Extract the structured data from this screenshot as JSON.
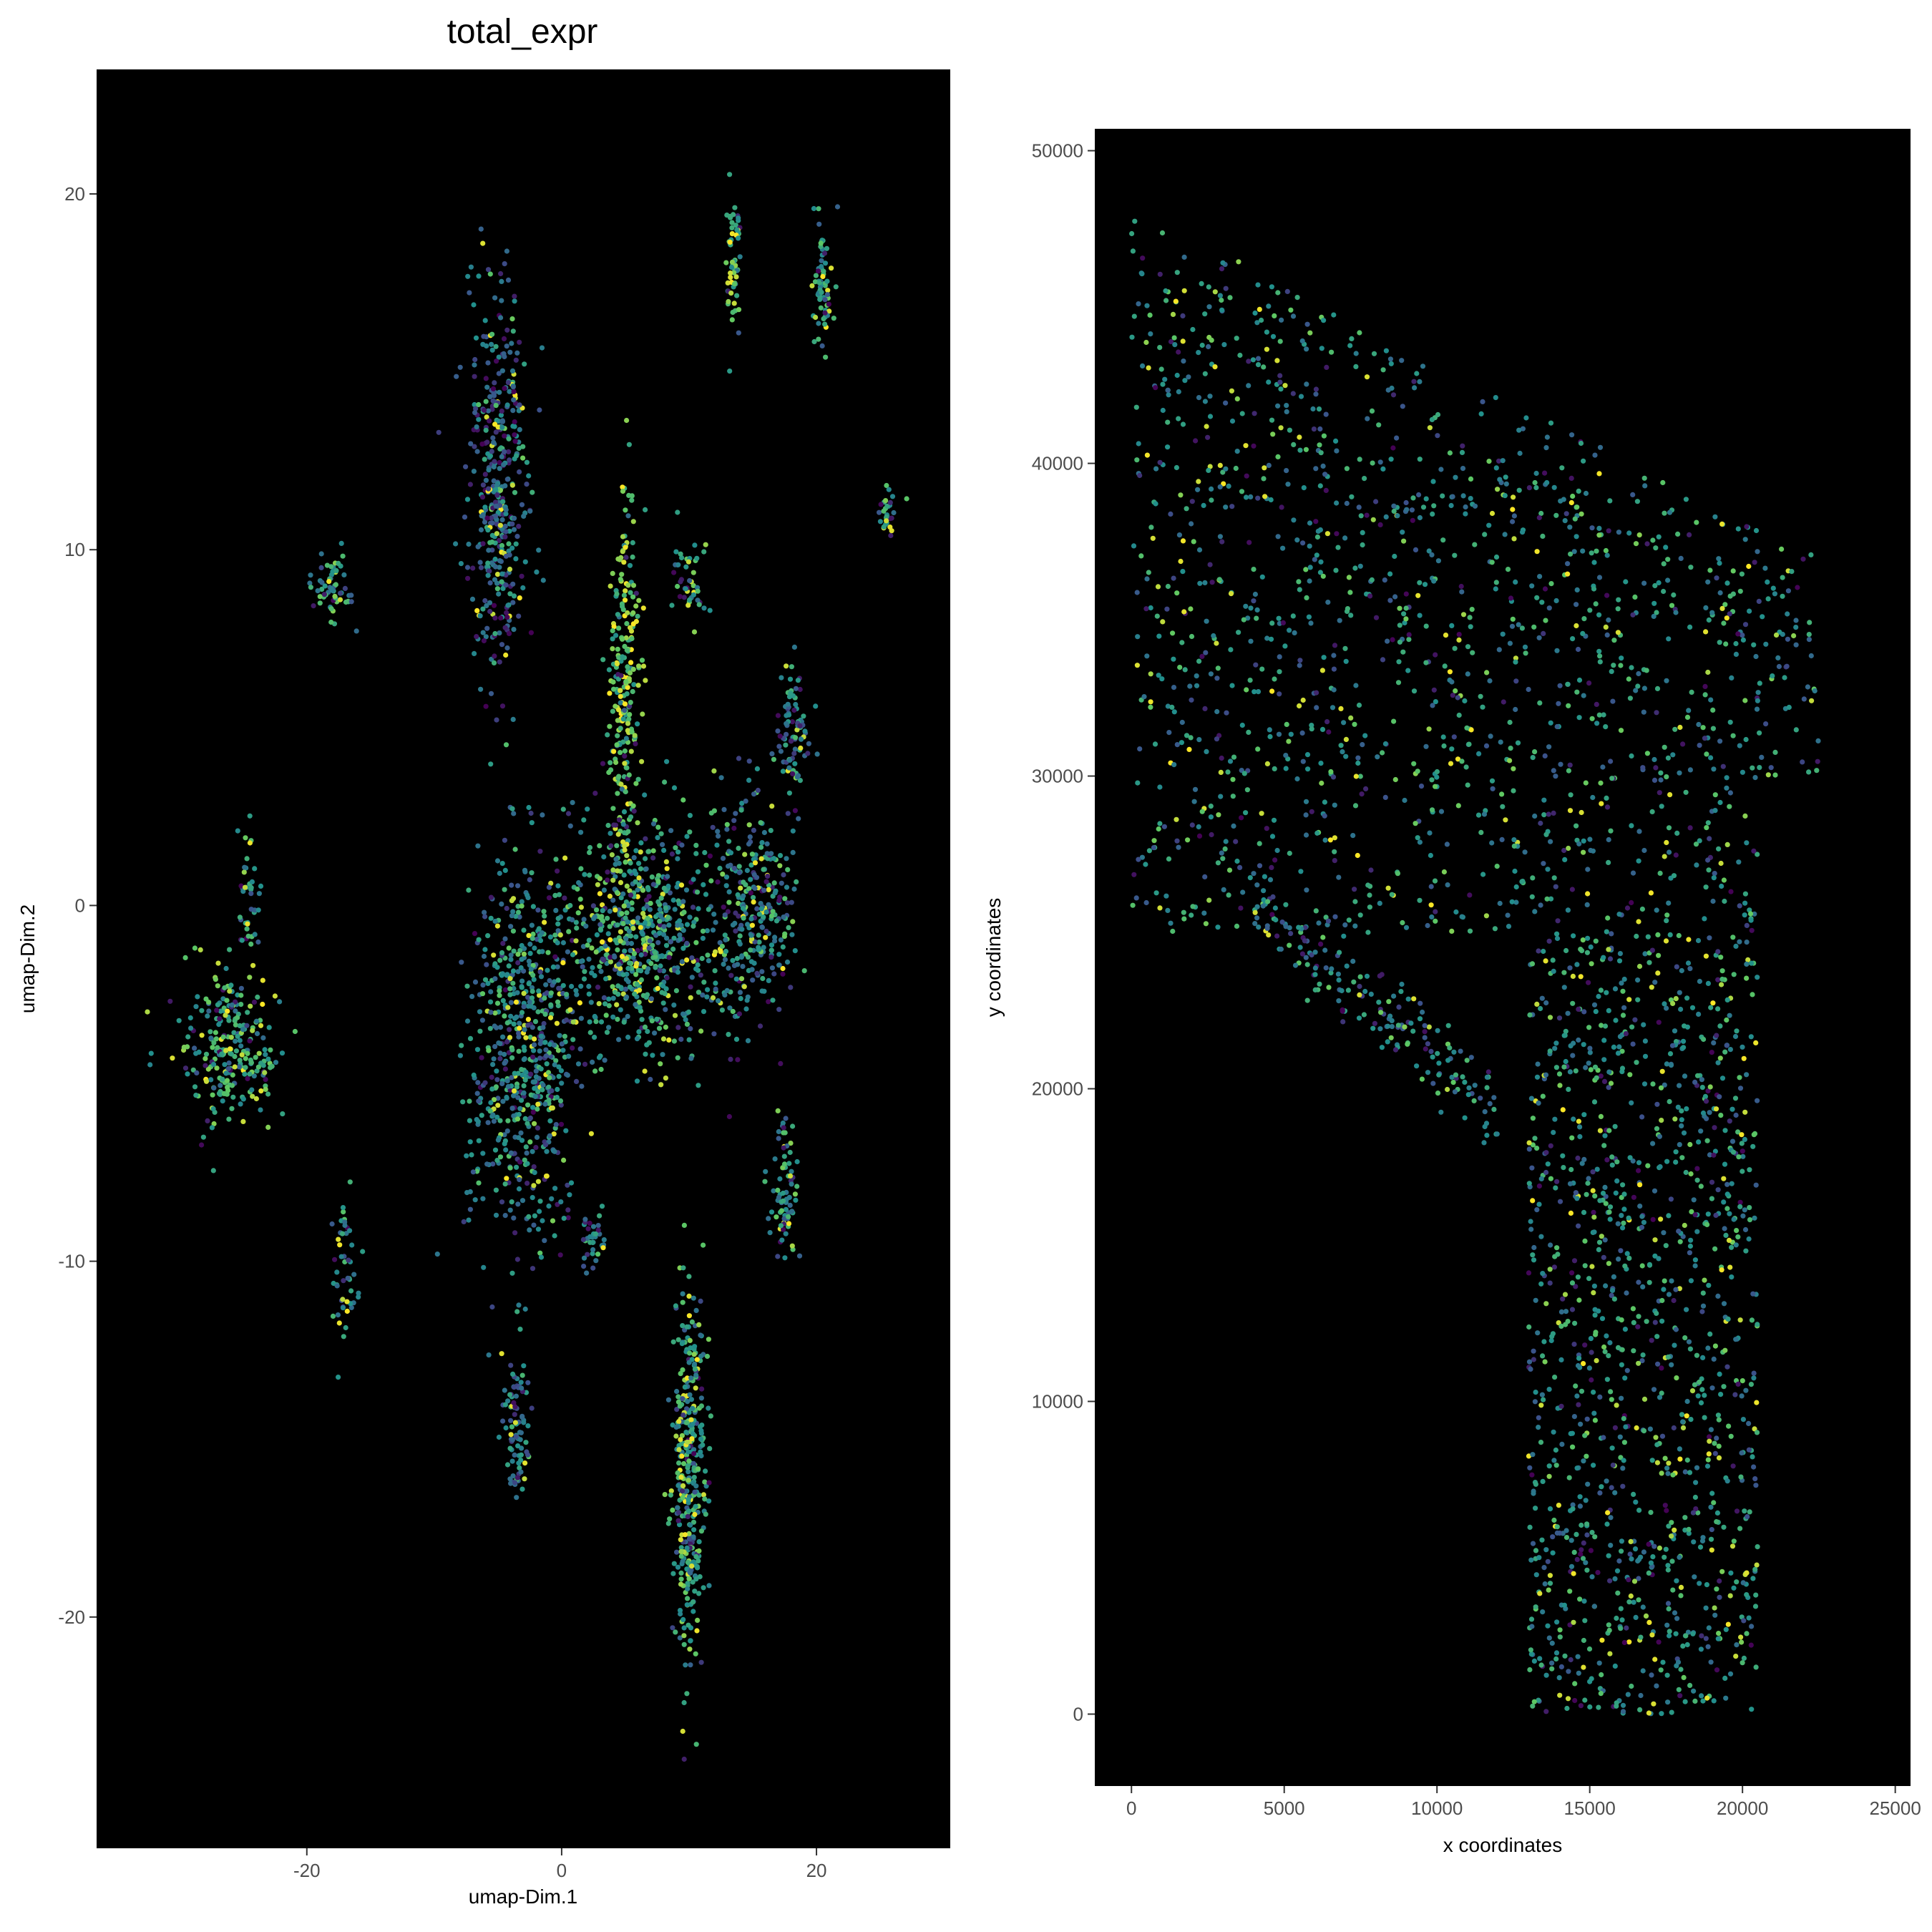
{
  "title": "total_expr",
  "colors": {
    "panel_background": "#000000",
    "figure_background": "#ffffff",
    "tick_color": "#4d4d4d",
    "viridis": [
      "#440154",
      "#3b528b",
      "#21908c",
      "#5dc863",
      "#fde725"
    ]
  },
  "chart_data": [
    {
      "type": "scatter",
      "panel": "umap",
      "xlabel": "umap-Dim.1",
      "ylabel": "umap-Dim.2",
      "xlim": [
        -36.5,
        30.5
      ],
      "ylim": [
        -26.5,
        23.5
      ],
      "xticks": [
        -20,
        0,
        20
      ],
      "xtick_labels": [
        "-20",
        "0",
        "20"
      ],
      "yticks": [
        -20,
        -10,
        0,
        10,
        20
      ],
      "ytick_labels": [
        "-20",
        "-10",
        "0",
        "10",
        "20"
      ],
      "grid": false,
      "legend": "none",
      "color_scale": "viridis",
      "clusters": [
        {
          "center": [
            -5,
            12
          ],
          "spread": [
            2.3,
            5.5
          ],
          "n": 420,
          "level": 0.35
        },
        {
          "center": [
            -3,
            -4
          ],
          "spread": [
            4.2,
            5.5
          ],
          "n": 650,
          "level": 0.45
        },
        {
          "center": [
            6,
            -1
          ],
          "spread": [
            6.0,
            3.2
          ],
          "n": 650,
          "level": 0.55
        },
        {
          "center": [
            15,
            0
          ],
          "spread": [
            3.5,
            3.0
          ],
          "n": 300,
          "level": 0.45
        },
        {
          "center": [
            5,
            6
          ],
          "spread": [
            1.2,
            5.5
          ],
          "n": 260,
          "level": 0.72
        },
        {
          "center": [
            10,
            -16
          ],
          "spread": [
            1.3,
            5.0
          ],
          "n": 380,
          "level": 0.55
        },
        {
          "center": [
            -26,
            -4
          ],
          "spread": [
            3.8,
            2.2
          ],
          "n": 260,
          "level": 0.6
        },
        {
          "center": [
            -3.5,
            -14.5
          ],
          "spread": [
            1.1,
            2.2
          ],
          "n": 90,
          "level": 0.4
        },
        {
          "center": [
            13.5,
            18
          ],
          "spread": [
            0.6,
            2.0
          ],
          "n": 60,
          "level": 0.6
        },
        {
          "center": [
            20.5,
            17.5
          ],
          "spread": [
            0.8,
            2.0
          ],
          "n": 70,
          "level": 0.6
        },
        {
          "center": [
            -18,
            9
          ],
          "spread": [
            1.4,
            0.9
          ],
          "n": 60,
          "level": 0.5
        },
        {
          "center": [
            25.5,
            11
          ],
          "spread": [
            0.9,
            0.7
          ],
          "n": 30,
          "level": 0.55
        },
        {
          "center": [
            18,
            5
          ],
          "spread": [
            1.3,
            1.8
          ],
          "n": 90,
          "level": 0.4
        },
        {
          "center": [
            17.5,
            -8
          ],
          "spread": [
            1.0,
            2.2
          ],
          "n": 80,
          "level": 0.45
        },
        {
          "center": [
            -17,
            -10
          ],
          "spread": [
            1.1,
            2.0
          ],
          "n": 50,
          "level": 0.5
        },
        {
          "center": [
            -24.5,
            0
          ],
          "spread": [
            0.8,
            2.0
          ],
          "n": 40,
          "level": 0.55
        },
        {
          "center": [
            2.5,
            -9.5
          ],
          "spread": [
            1.0,
            0.8
          ],
          "n": 35,
          "level": 0.5
        },
        {
          "center": [
            10,
            9
          ],
          "spread": [
            1.5,
            1.2
          ],
          "n": 45,
          "level": 0.6
        }
      ]
    },
    {
      "type": "scatter",
      "panel": "spatial",
      "xlabel": "x coordinates",
      "ylabel": "y coordinates",
      "xlim": [
        -1200,
        25500
      ],
      "ylim": [
        -2300,
        50700
      ],
      "xticks": [
        0,
        5000,
        10000,
        15000,
        20000,
        25000
      ],
      "xtick_labels": [
        "0",
        "5000",
        "10000",
        "15000",
        "20000",
        "25000"
      ],
      "yticks": [
        0,
        10000,
        20000,
        30000,
        40000,
        50000
      ],
      "ytick_labels": [
        "0",
        "10000",
        "20000",
        "30000",
        "40000",
        "50000"
      ],
      "grid": false,
      "legend": "none",
      "color_scale": "viridis",
      "regions": [
        {
          "x": [
            0,
            22500
          ],
          "y": [
            30000,
            48000
          ],
          "top_edge": [
            [
              0,
              48200
            ],
            [
              22500,
              37000
            ]
          ],
          "n": 1500,
          "level": 0.5
        },
        {
          "x": [
            0,
            20500
          ],
          "y": [
            25000,
            30000
          ],
          "n": 350,
          "level": 0.5
        },
        {
          "x": [
            13000,
            20500
          ],
          "y": [
            0,
            25000
          ],
          "n": 1200,
          "level": 0.5
        },
        {
          "x": [
            4000,
            12000
          ],
          "y": [
            19500,
            26000
          ],
          "band": true,
          "n": 180,
          "level": 0.45
        }
      ]
    }
  ]
}
